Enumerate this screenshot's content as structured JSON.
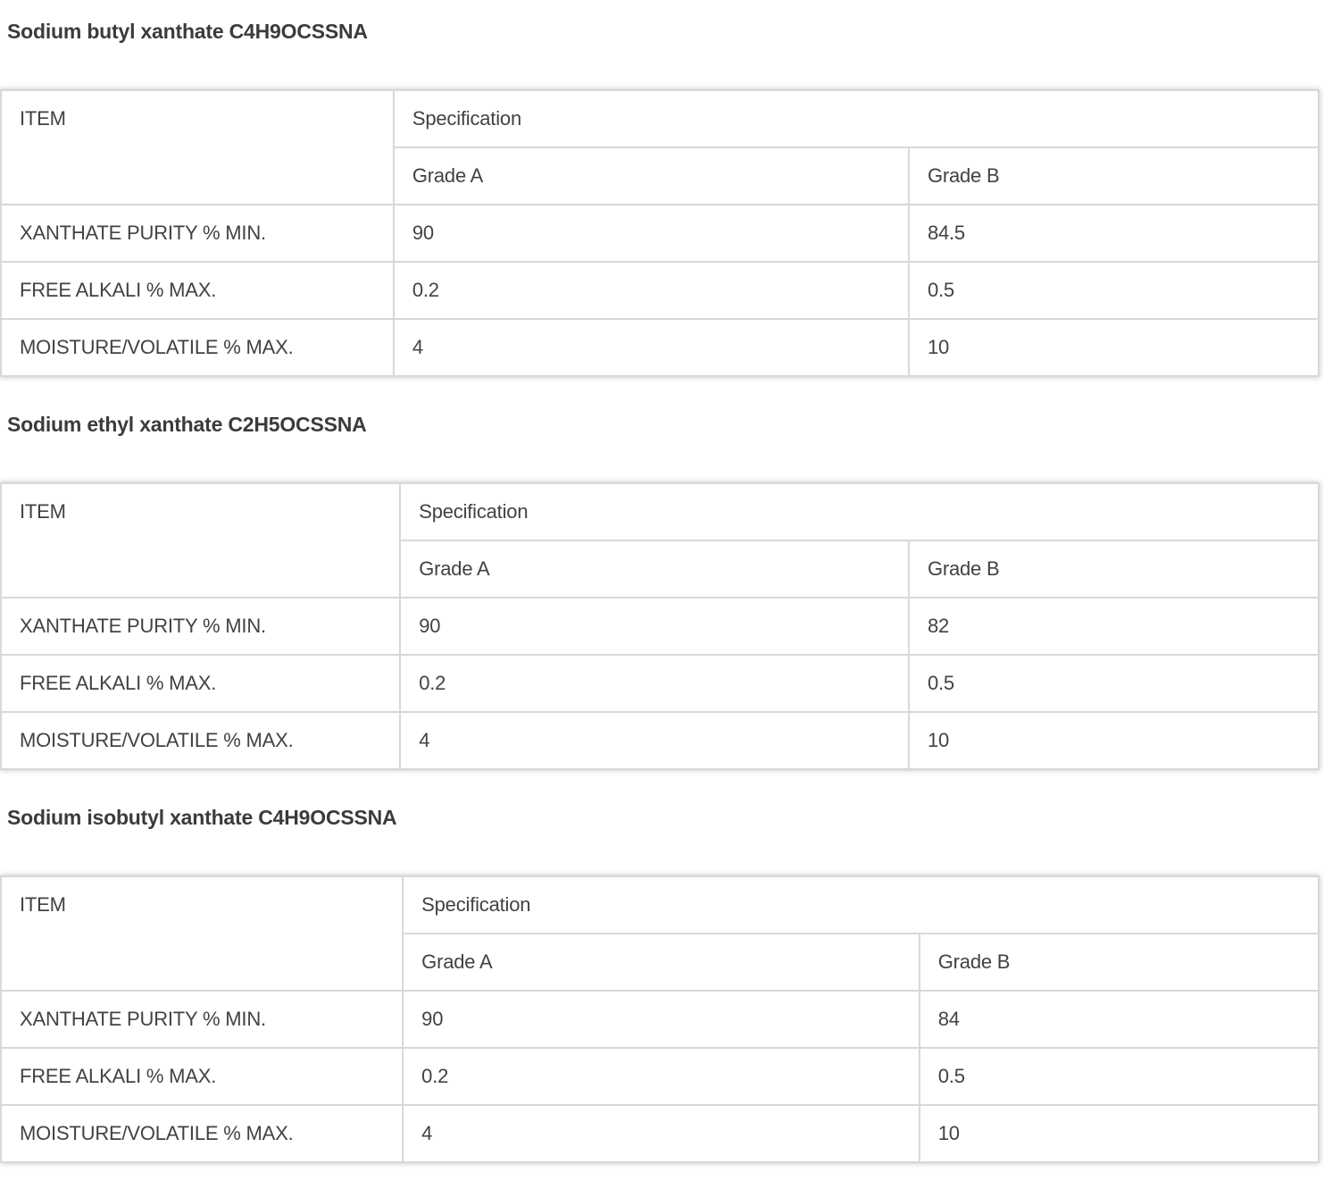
{
  "colors": {
    "heading_text": "#3b3b3b",
    "cell_text": "#424242",
    "border_outer": "#c6c6c6",
    "border_inner": "#d8d8d8"
  },
  "sections": [
    {
      "heading": "Sodium butyl xanthate C4H9OCSSNA",
      "table": {
        "item_header": "ITEM",
        "spec_header": "Specification",
        "grade_a_header": "Grade A",
        "grade_b_header": "Grade B",
        "rows": [
          {
            "item": "XANTHATE PURITY % MIN.",
            "grade_a": "90",
            "grade_b": "84.5"
          },
          {
            "item": "FREE ALKALI % MAX.",
            "grade_a": "0.2",
            "grade_b": "0.5"
          },
          {
            "item": "MOISTURE/VOLATILE % MAX.",
            "grade_a": "4",
            "grade_b": "10"
          }
        ]
      }
    },
    {
      "heading": "Sodium ethyl xanthate C2H5OCSSNA",
      "table": {
        "item_header": "ITEM",
        "spec_header": "Specification",
        "grade_a_header": "Grade A",
        "grade_b_header": "Grade B",
        "rows": [
          {
            "item": "XANTHATE PURITY % MIN.",
            "grade_a": "90",
            "grade_b": "82"
          },
          {
            "item": "FREE ALKALI % MAX.",
            "grade_a": "0.2",
            "grade_b": "0.5"
          },
          {
            "item": "MOISTURE/VOLATILE % MAX.",
            "grade_a": "4",
            "grade_b": "10"
          }
        ]
      }
    },
    {
      "heading": "Sodium isobutyl xanthate C4H9OCSSNA",
      "table": {
        "item_header": "ITEM",
        "spec_header": "Specification",
        "grade_a_header": "Grade A",
        "grade_b_header": "Grade B",
        "rows": [
          {
            "item": "XANTHATE PURITY % MIN.",
            "grade_a": "90",
            "grade_b": "84"
          },
          {
            "item": "FREE ALKALI % MAX.",
            "grade_a": "0.2",
            "grade_b": "0.5"
          },
          {
            "item": "MOISTURE/VOLATILE % MAX.",
            "grade_a": "4",
            "grade_b": "10"
          }
        ]
      }
    }
  ]
}
